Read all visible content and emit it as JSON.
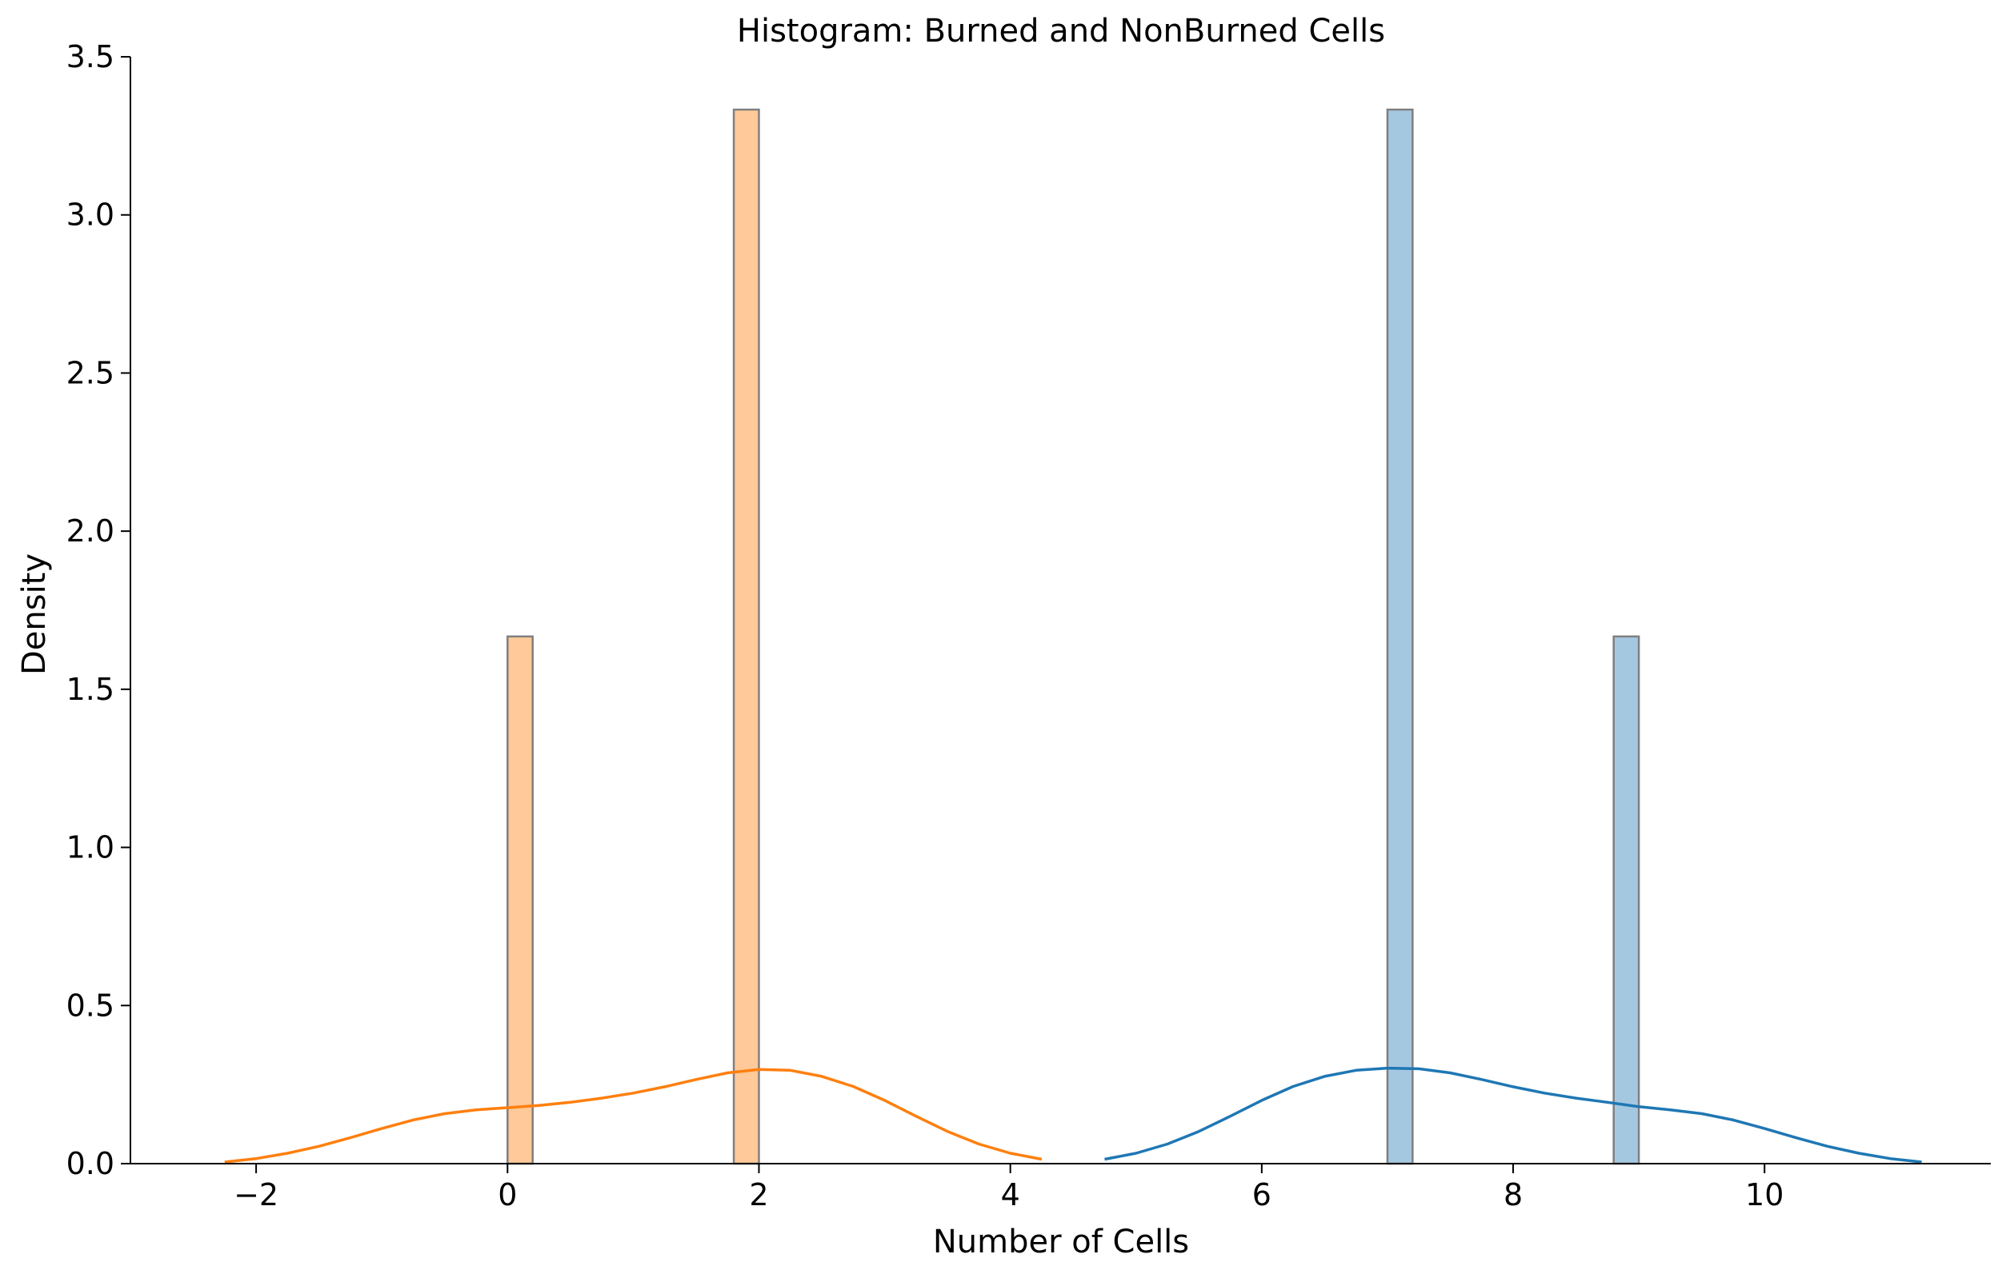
{
  "chart_data": {
    "type": "bar",
    "title": "Histogram: Burned and NonBurned Cells",
    "xlabel": "Number of Cells",
    "ylabel": "Density",
    "xlim": [
      -3,
      11.8
    ],
    "ylim": [
      0,
      3.5
    ],
    "x_ticks": [
      -2,
      0,
      2,
      4,
      6,
      8,
      10
    ],
    "x_tick_labels": [
      "−2",
      "0",
      "2",
      "4",
      "6",
      "8",
      "10"
    ],
    "y_ticks": [
      0.0,
      0.5,
      1.0,
      1.5,
      2.0,
      2.5,
      3.0,
      3.5
    ],
    "y_tick_labels": [
      "0.0",
      "0.5",
      "1.0",
      "1.5",
      "2.0",
      "2.5",
      "3.0",
      "3.5"
    ],
    "grid": false,
    "series": [
      {
        "color": "#ff7f0e",
        "bar_fill": "#ffc999",
        "bars": [
          {
            "x0": 0.0,
            "x1": 0.2,
            "density": 1.667
          },
          {
            "x0": 1.8,
            "x1": 2.0,
            "density": 3.333
          }
        ],
        "kde": [
          [
            -2.25,
            0.005
          ],
          [
            -2.0,
            0.016
          ],
          [
            -1.75,
            0.033
          ],
          [
            -1.5,
            0.055
          ],
          [
            -1.25,
            0.082
          ],
          [
            -1.0,
            0.111
          ],
          [
            -0.75,
            0.138
          ],
          [
            -0.5,
            0.158
          ],
          [
            -0.25,
            0.17
          ],
          [
            0.0,
            0.177
          ],
          [
            0.25,
            0.184
          ],
          [
            0.5,
            0.194
          ],
          [
            0.75,
            0.207
          ],
          [
            1.0,
            0.223
          ],
          [
            1.25,
            0.243
          ],
          [
            1.5,
            0.266
          ],
          [
            1.75,
            0.287
          ],
          [
            2.0,
            0.298
          ],
          [
            2.25,
            0.295
          ],
          [
            2.5,
            0.276
          ],
          [
            2.75,
            0.244
          ],
          [
            3.0,
            0.2
          ],
          [
            3.25,
            0.15
          ],
          [
            3.5,
            0.102
          ],
          [
            3.75,
            0.062
          ],
          [
            4.0,
            0.033
          ],
          [
            4.25,
            0.014
          ]
        ]
      },
      {
        "color": "#1f77b4",
        "bar_fill": "#a5c8e1",
        "bars": [
          {
            "x0": 7.0,
            "x1": 7.2,
            "density": 3.333
          },
          {
            "x0": 8.8,
            "x1": 9.0,
            "density": 1.667
          }
        ],
        "kde": [
          [
            4.75,
            0.014
          ],
          [
            5.0,
            0.033
          ],
          [
            5.25,
            0.062
          ],
          [
            5.5,
            0.102
          ],
          [
            5.75,
            0.15
          ],
          [
            6.0,
            0.2
          ],
          [
            6.25,
            0.244
          ],
          [
            6.5,
            0.276
          ],
          [
            6.75,
            0.295
          ],
          [
            7.0,
            0.302
          ],
          [
            7.25,
            0.3
          ],
          [
            7.5,
            0.287
          ],
          [
            7.75,
            0.266
          ],
          [
            8.0,
            0.243
          ],
          [
            8.25,
            0.223
          ],
          [
            8.5,
            0.207
          ],
          [
            8.75,
            0.194
          ],
          [
            9.0,
            0.18
          ],
          [
            9.25,
            0.17
          ],
          [
            9.5,
            0.158
          ],
          [
            9.75,
            0.138
          ],
          [
            10.0,
            0.111
          ],
          [
            10.25,
            0.082
          ],
          [
            10.5,
            0.055
          ],
          [
            10.75,
            0.033
          ],
          [
            11.0,
            0.016
          ],
          [
            11.25,
            0.005
          ]
        ]
      }
    ]
  }
}
